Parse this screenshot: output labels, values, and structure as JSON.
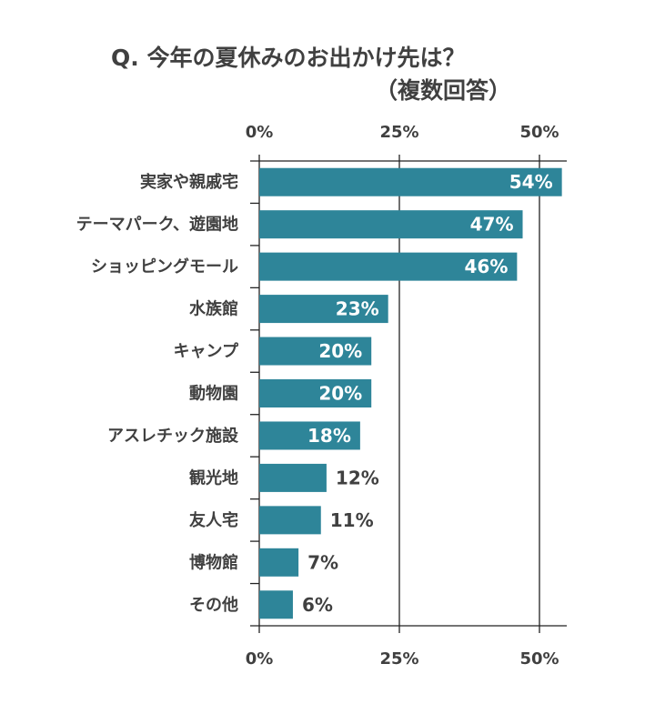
{
  "chart_data": {
    "type": "bar",
    "orientation": "horizontal",
    "title": "Q. 今年の夏休みのお出かけ先は？",
    "subtitle": "（複数回答）",
    "categories": [
      "実家や親戚宅",
      "テーマパーク、遊園地",
      "ショッピングモール",
      "水族館",
      "キャンプ",
      "動物園",
      "アスレチック施設",
      "観光地",
      "友人宅",
      "博物館",
      "その他"
    ],
    "values": [
      54,
      47,
      46,
      23,
      20,
      20,
      18,
      12,
      11,
      7,
      6
    ],
    "value_labels": [
      "54%",
      "47%",
      "46%",
      "23%",
      "20%",
      "20%",
      "18%",
      "12%",
      "11%",
      "7%",
      "6%"
    ],
    "xticks": [
      0,
      25,
      50
    ],
    "xtick_labels": [
      "0%",
      "25%",
      "50%"
    ],
    "xlim": [
      0,
      55
    ],
    "grid": true,
    "bar_color": "#2e8599",
    "text_color": "#404040",
    "inside_label_color": "#ffffff"
  }
}
